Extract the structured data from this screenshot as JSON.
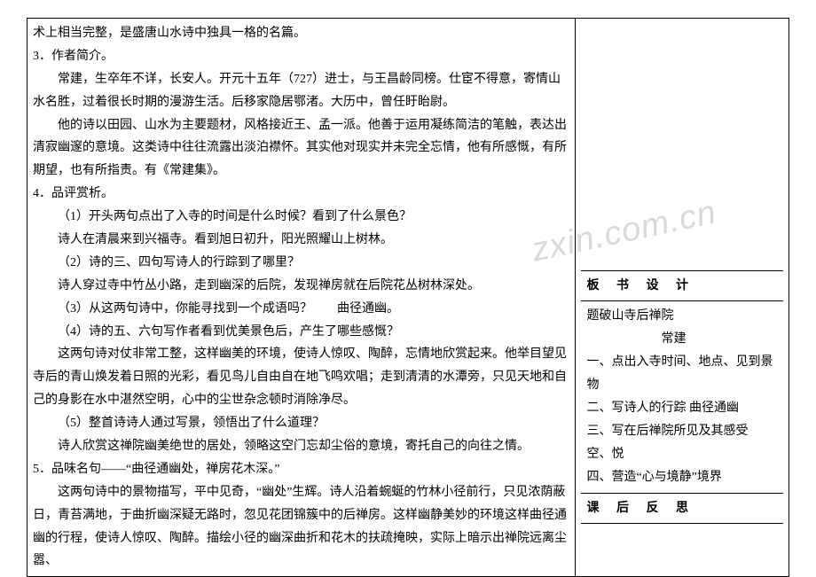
{
  "watermark": "zxin.com.cn",
  "left": {
    "p1": "术上相当完整，是盛唐山水诗中独具一格的名篇。",
    "p2": "3．作者简介。",
    "p3": "常建，生卒年不详，长安人。开元十五年（727）进士，与王昌龄同榜。仕宦不得意，寄情山水名胜，过着很长时期的漫游生活。后移家隐居鄂渚。大历中，曾任盱眙尉。",
    "p4": "他的诗以田园、山水为主要题材，风格接近王、孟一派。他善于运用凝练简洁的笔触，表达出清寂幽邃的意境。这类诗中往往流露出淡泊襟怀。其实他对现实并未完全忘情，他有所感慨，有所期望，也有所指责。有《常建集》。",
    "p5": "4．品评赏析。",
    "p6": "（1）开头两句点出了入寺的时间是什么时候？看到了什么景色？",
    "p7": "诗人在清晨来到兴福寺。看到旭日初升，阳光照耀山上树林。",
    "p8": "（2）诗的三、四句写诗人的行踪到了哪里？",
    "p9": "诗人穿过寺中竹丛小路，走到幽深的后院，发现禅房就在后院花丛树林深处。",
    "p10": "（3）从这两句诗中，你能寻找到一个成语吗？　　曲径通幽。",
    "p11": "（4）诗的五、六句写作者看到优美景色后，产生了哪些感慨？",
    "p12": "这两句诗对仗非常工整，这样幽美的环境，使诗人惊叹、陶醉，忘情地欣赏起来。他举目望见寺后的青山焕发着日照的光彩，看见鸟儿自由自在地飞鸣欢唱；走到清清的水潭旁，只见天地和自己的身影在水中湛然空明，心中的尘世杂念顿时消除净尽。",
    "p13": "（5）整首诗诗人通过写景，领悟出了什么道理？",
    "p14": "诗人欣赏这禅院幽美绝世的居处，领略这空门忘却尘俗的意境，寄托自己的向往之情。",
    "p15": "5．品味名句——“曲径通幽处，禅房花木深。”",
    "p16": "这两句诗中的景物描写，平中见奇，“幽处”生辉。诗人沿着蜿蜒的竹林小径前行，只见浓荫蔽日，青苔满地，于曲折幽深疑无路时，忽见花团锦簇中的后禅房。这样幽静美妙的环境这样曲径通幽的行程，使诗人惊叹、陶醉。描绘小径的幽深曲折和花木的扶疏掩映，实际上暗示出禅院远离尘嚣、"
  },
  "right": {
    "board_title": "板 书 设 计",
    "board_l1": "题破山寺后禅院",
    "board_l2": "　　　　　　常建",
    "board_l3": "一、点出入寺时间、地点、见到景物",
    "board_l4": "二、写诗人的行踪 曲径通幽",
    "board_l5": "三、写在后禅院所见及其感受　空、悦",
    "board_l6": "四、营造“心与境静”境界",
    "reflect_title": "课 后 反 思"
  },
  "colors": {
    "text": "#000000",
    "border": "#000000",
    "background": "#ffffff",
    "watermark": "#d9d9d9"
  },
  "typography": {
    "body_fontsize": 14,
    "watermark_fontsize": 38,
    "line_height": 1.85
  }
}
